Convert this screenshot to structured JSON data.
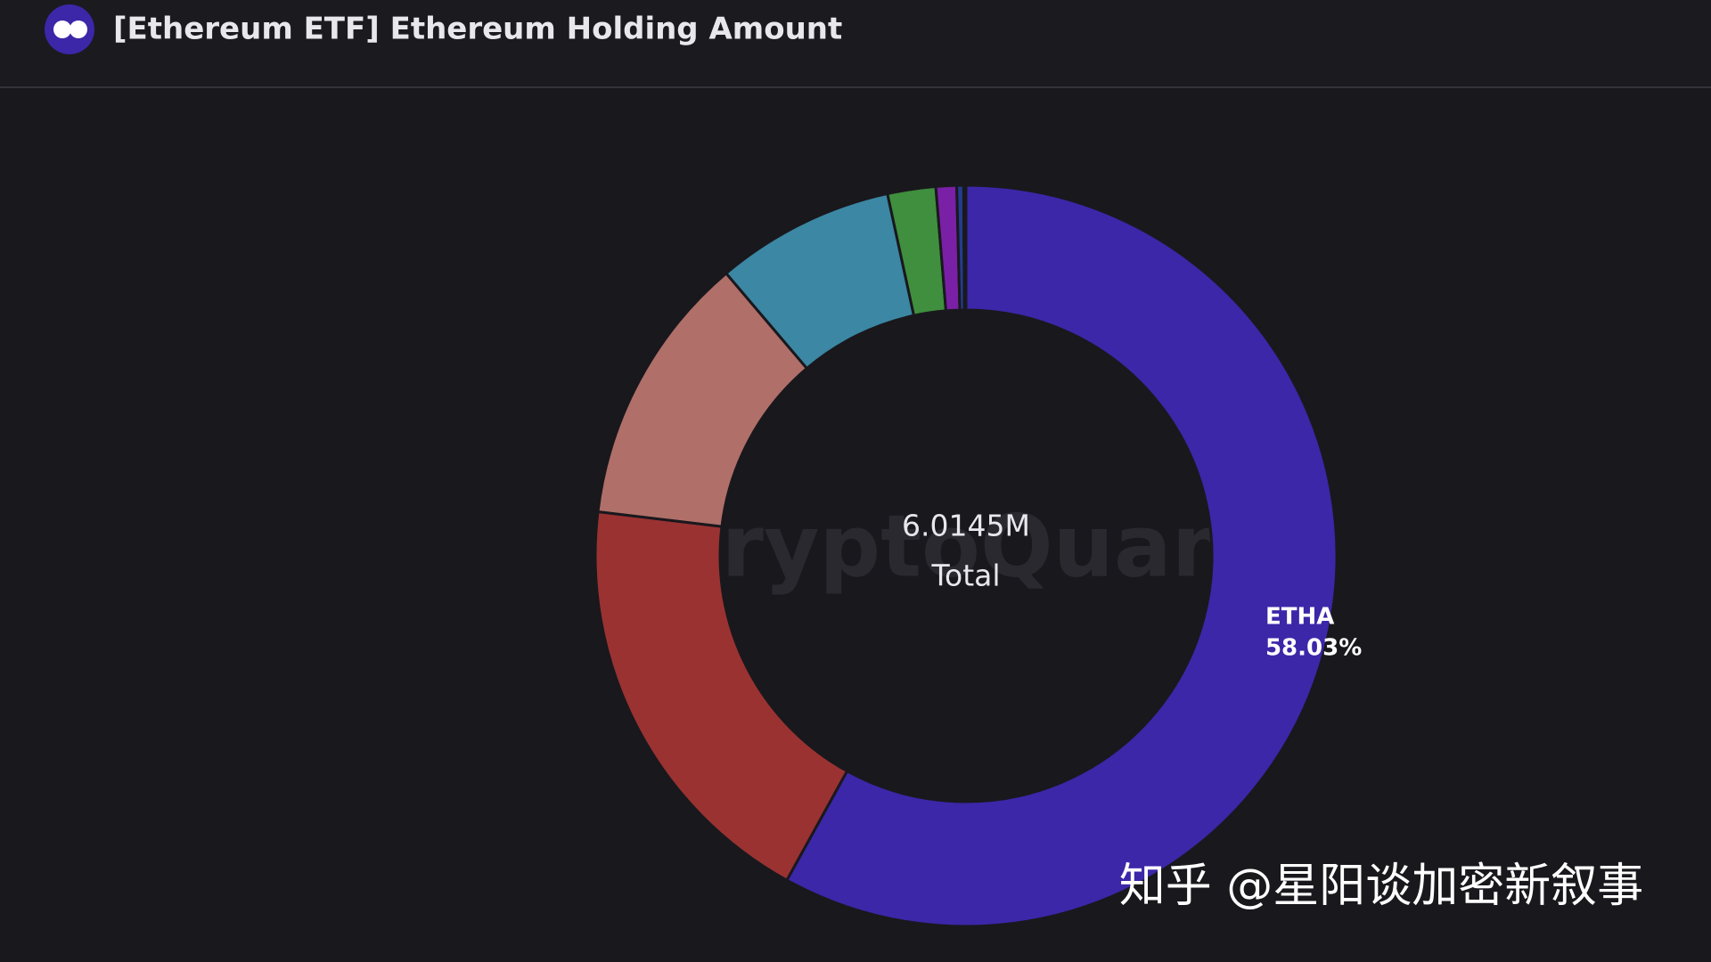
{
  "chart_data": {
    "type": "pie",
    "title": "[Ethereum ETF] Ethereum Holding Amount",
    "center_value": "6.0145M",
    "center_label": "Total",
    "watermark": "CryptoQuant",
    "credit": "知乎 @星阳谈加密新叙事",
    "categories": [
      "ETHA",
      null,
      null,
      null,
      null,
      null,
      null,
      null
    ],
    "values": [
      58.03,
      18.87,
      11.9,
      7.8,
      2.1,
      0.9,
      0.3,
      0.1
    ],
    "value_labels": [
      "58.03%",
      null,
      null,
      null,
      null,
      null,
      null,
      null
    ],
    "colors": [
      "#3b27a8",
      "#9a3232",
      "#b06f69",
      "#3b87a4",
      "#3f8f3e",
      "#7a20a6",
      "#243c8c",
      "#2d2b6b"
    ]
  }
}
